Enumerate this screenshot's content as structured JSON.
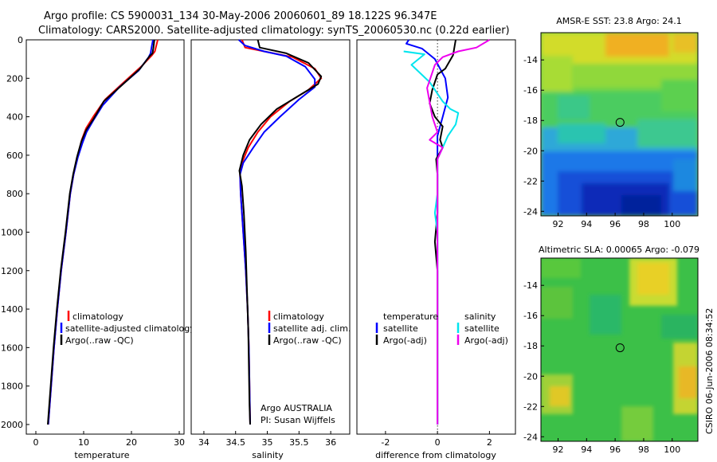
{
  "header": {
    "line1": "Argo profile: CS 5900031_134 30-May-2006 20060601_89 18.122S 96.347E",
    "line2": "Climatology: CARS2000. Satellite-adjusted climatology: synTS_20060530.nc (0.22d earlier)"
  },
  "colors": {
    "climatology": "#ff0000",
    "satellite": "#0000ff",
    "argo": "#000000",
    "salinity_satellite": "#00e5ee",
    "salinity_argo": "#ee00ee",
    "marker": "#000000"
  },
  "chart_data": [
    {
      "type": "line",
      "id": "temperature",
      "xlabel": "temperature",
      "xlim": [
        -2,
        31
      ],
      "ylim": [
        2050,
        0
      ],
      "xticks": [
        0,
        10,
        20,
        30
      ],
      "xtick_labels": [
        "0",
        "10",
        "20",
        "30"
      ],
      "yticks": [
        0,
        200,
        400,
        600,
        800,
        1000,
        1200,
        1400,
        1600,
        1800,
        2000
      ],
      "ytick_labels": [
        "0",
        "200",
        "400",
        "600",
        "800",
        "1000",
        "1200",
        "1400",
        "1600",
        "1800",
        "2000"
      ],
      "legend": [
        "climatology",
        "satellite-adjusted climatology",
        "Argo(..raw -QC)"
      ],
      "series": [
        {
          "name": "climatology",
          "color": "#ff0000",
          "points": [
            [
              25.5,
              0
            ],
            [
              25.2,
              30
            ],
            [
              24.9,
              60
            ],
            [
              24.3,
              80
            ],
            [
              22,
              140
            ],
            [
              18,
              230
            ],
            [
              14.5,
              310
            ],
            [
              12,
              400
            ],
            [
              10.5,
              460
            ],
            [
              9.6,
              520
            ],
            [
              8.8,
              600
            ],
            [
              7.9,
              700
            ],
            [
              7.2,
              800
            ],
            [
              6.3,
              1000
            ],
            [
              5.3,
              1200
            ],
            [
              4.5,
              1400
            ],
            [
              3.8,
              1600
            ],
            [
              3.2,
              1800
            ],
            [
              2.6,
              2000
            ]
          ]
        },
        {
          "name": "satellite-adjusted climatology",
          "color": "#0000ff",
          "points": [
            [
              24.5,
              0
            ],
            [
              24.2,
              40
            ],
            [
              24.0,
              70
            ],
            [
              23.6,
              90
            ],
            [
              21.5,
              160
            ],
            [
              17.5,
              245
            ],
            [
              14,
              340
            ],
            [
              12,
              420
            ],
            [
              10.6,
              480
            ],
            [
              9.7,
              540
            ],
            [
              8.8,
              610
            ],
            [
              7.9,
              700
            ],
            [
              7.2,
              800
            ],
            [
              6.3,
              1000
            ],
            [
              5.3,
              1200
            ],
            [
              4.5,
              1400
            ],
            [
              3.8,
              1600
            ],
            [
              3.2,
              1800
            ],
            [
              2.6,
              2000
            ]
          ]
        },
        {
          "name": "Argo(..raw -QC)",
          "color": "#000000",
          "points": [
            [
              24.8,
              0
            ],
            [
              24.6,
              40
            ],
            [
              24.4,
              70
            ],
            [
              23.8,
              85
            ],
            [
              21.8,
              150
            ],
            [
              17.8,
              240
            ],
            [
              14.2,
              320
            ],
            [
              12.1,
              410
            ],
            [
              10.5,
              470
            ],
            [
              9.5,
              530
            ],
            [
              8.6,
              610
            ],
            [
              7.8,
              700
            ],
            [
              7.1,
              800
            ],
            [
              6.2,
              1000
            ],
            [
              5.2,
              1200
            ],
            [
              4.4,
              1400
            ],
            [
              3.7,
              1600
            ],
            [
              3.1,
              1800
            ],
            [
              2.5,
              2000
            ]
          ]
        }
      ]
    },
    {
      "type": "line",
      "id": "salinity",
      "xlabel": "salinity",
      "xlim": [
        33.8,
        36.3
      ],
      "ylim": [
        2050,
        0
      ],
      "xticks": [
        34,
        34.5,
        35,
        35.5,
        36
      ],
      "xtick_labels": [
        "34",
        "34.5",
        "35",
        "35.5",
        "36"
      ],
      "legend": [
        "climatology",
        "satellite adj. clim.",
        "Argo(..raw -QC)"
      ],
      "annotation": [
        "Argo AUSTRALIA",
        "PI: Susan Wijffels"
      ],
      "series": [
        {
          "name": "climatology",
          "color": "#ff0000",
          "points": [
            [
              34.6,
              0
            ],
            [
              34.65,
              40
            ],
            [
              34.95,
              60
            ],
            [
              35.4,
              90
            ],
            [
              35.75,
              150
            ],
            [
              35.85,
              200
            ],
            [
              35.65,
              260
            ],
            [
              35.35,
              320
            ],
            [
              35.05,
              400
            ],
            [
              34.85,
              480
            ],
            [
              34.7,
              560
            ],
            [
              34.6,
              640
            ],
            [
              34.57,
              700
            ],
            [
              34.58,
              800
            ],
            [
              34.62,
              1000
            ],
            [
              34.66,
              1200
            ],
            [
              34.69,
              1400
            ],
            [
              34.71,
              1600
            ],
            [
              34.72,
              1800
            ],
            [
              34.73,
              2000
            ]
          ]
        },
        {
          "name": "satellite adj. clim.",
          "color": "#0000ff",
          "points": [
            [
              34.55,
              0
            ],
            [
              34.65,
              30
            ],
            [
              34.95,
              60
            ],
            [
              35.3,
              85
            ],
            [
              35.6,
              140
            ],
            [
              35.75,
              205
            ],
            [
              35.75,
              245
            ],
            [
              35.5,
              310
            ],
            [
              35.2,
              400
            ],
            [
              34.95,
              480
            ],
            [
              34.78,
              560
            ],
            [
              34.62,
              640
            ],
            [
              34.57,
              700
            ],
            [
              34.58,
              800
            ],
            [
              34.62,
              1000
            ],
            [
              34.66,
              1200
            ],
            [
              34.69,
              1400
            ],
            [
              34.71,
              1600
            ],
            [
              34.72,
              1800
            ],
            [
              34.73,
              2000
            ]
          ]
        },
        {
          "name": "Argo(..raw -QC)",
          "color": "#000000",
          "points": [
            [
              34.85,
              0
            ],
            [
              34.88,
              40
            ],
            [
              35.3,
              70
            ],
            [
              35.65,
              120
            ],
            [
              35.85,
              190
            ],
            [
              35.8,
              230
            ],
            [
              35.5,
              290
            ],
            [
              35.15,
              360
            ],
            [
              34.9,
              440
            ],
            [
              34.72,
              520
            ],
            [
              34.62,
              600
            ],
            [
              34.56,
              680
            ],
            [
              34.6,
              760
            ],
            [
              34.63,
              900
            ],
            [
              34.66,
              1100
            ],
            [
              34.68,
              1300
            ],
            [
              34.7,
              1500
            ],
            [
              34.71,
              1700
            ],
            [
              34.72,
              1900
            ],
            [
              34.73,
              2000
            ]
          ]
        }
      ]
    },
    {
      "type": "line",
      "id": "difference",
      "xlabel": "difference from climatology",
      "xlim": [
        -3.1,
        3.0
      ],
      "ylim": [
        2050,
        0
      ],
      "xticks": [
        -2,
        0,
        2
      ],
      "xtick_labels": [
        "-2",
        "0",
        "2"
      ],
      "legend_temperature": [
        "temperature",
        "satellite",
        "Argo(-adj)"
      ],
      "legend_salinity": [
        "salinity",
        "satellite",
        "Argo(-adj)"
      ],
      "series": [
        {
          "name": "temperature satellite",
          "color": "#0000ff",
          "points": [
            [
              -1.1,
              0
            ],
            [
              -1.2,
              20
            ],
            [
              -0.6,
              45
            ],
            [
              -0.1,
              100
            ],
            [
              0.3,
              200
            ],
            [
              0.4,
              300
            ],
            [
              0.2,
              400
            ],
            [
              0,
              500
            ],
            [
              0,
              600
            ],
            [
              0,
              800
            ],
            [
              0,
              1000
            ],
            [
              0,
              1200
            ],
            [
              0,
              1400
            ],
            [
              0,
              1600
            ],
            [
              0,
              1800
            ],
            [
              0,
              2000
            ]
          ]
        },
        {
          "name": "temperature Argo(-adj)",
          "color": "#000000",
          "points": [
            [
              0.7,
              0
            ],
            [
              0.6,
              80
            ],
            [
              0.3,
              150
            ],
            [
              0,
              180
            ],
            [
              -0.2,
              260
            ],
            [
              -0.3,
              330
            ],
            [
              -0.1,
              400
            ],
            [
              0.2,
              450
            ],
            [
              0.1,
              520
            ],
            [
              0.2,
              560
            ],
            [
              -0.05,
              620
            ],
            [
              0,
              700
            ],
            [
              0,
              900
            ],
            [
              -0.1,
              1050
            ],
            [
              0,
              1200
            ],
            [
              0,
              1400
            ],
            [
              0,
              1600
            ],
            [
              0,
              1800
            ],
            [
              0,
              2000
            ]
          ]
        },
        {
          "name": "salinity satellite",
          "color": "#00e5ee",
          "points": [
            [
              -1.3,
              60
            ],
            [
              -0.5,
              75
            ],
            [
              -1.0,
              130
            ],
            [
              -0.3,
              220
            ],
            [
              0.2,
              320
            ],
            [
              0.5,
              360
            ],
            [
              0.8,
              380
            ],
            [
              0.7,
              440
            ],
            [
              0.4,
              500
            ],
            [
              0.2,
              560
            ],
            [
              0,
              620
            ],
            [
              0,
              680
            ],
            [
              0,
              800
            ],
            [
              -0.1,
              900
            ],
            [
              0,
              1000
            ],
            [
              0,
              1200
            ],
            [
              0,
              1400
            ],
            [
              0,
              1600
            ],
            [
              0,
              1800
            ],
            [
              0,
              2000
            ]
          ]
        },
        {
          "name": "salinity Argo(-adj)",
          "color": "#ee00ee",
          "points": [
            [
              2.0,
              0
            ],
            [
              1.5,
              40
            ],
            [
              0.8,
              60
            ],
            [
              0.2,
              90
            ],
            [
              -0.1,
              130
            ],
            [
              -0.4,
              250
            ],
            [
              -0.2,
              400
            ],
            [
              0,
              480
            ],
            [
              -0.3,
              520
            ],
            [
              0.2,
              560
            ],
            [
              0,
              620
            ],
            [
              0,
              700
            ],
            [
              0,
              900
            ],
            [
              0,
              1100
            ],
            [
              0,
              1300
            ],
            [
              0,
              1500
            ],
            [
              0,
              1700
            ],
            [
              0,
              1900
            ],
            [
              0,
              2000
            ]
          ]
        }
      ]
    }
  ],
  "maps": [
    {
      "title": "AMSR-E SST: 23.8 Argo: 24.1",
      "xticks": [
        92,
        94,
        96,
        98,
        100
      ],
      "yticks": [
        -14,
        -16,
        -18,
        -20,
        -22,
        -24
      ],
      "xlim": [
        90.8,
        101.8
      ],
      "ylim": [
        -24.3,
        -12.2
      ],
      "marker": {
        "lon": 96.347,
        "lat": -18.122
      }
    },
    {
      "title": "Altimetric SLA: 0.00065 Argo: -0.079",
      "xticks": [
        92,
        94,
        96,
        98,
        100
      ],
      "yticks": [
        -14,
        -16,
        -18,
        -20,
        -22,
        -24
      ],
      "xlim": [
        90.8,
        101.8
      ],
      "ylim": [
        -24.3,
        -12.2
      ],
      "marker": {
        "lon": 96.347,
        "lat": -18.122
      }
    }
  ],
  "side_label": "CSIRO 06-Jun-2006 08:34:52"
}
